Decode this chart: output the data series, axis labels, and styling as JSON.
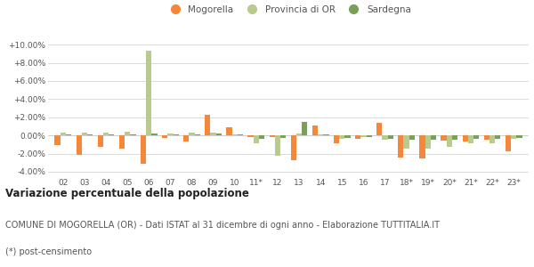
{
  "categories": [
    "02",
    "03",
    "04",
    "05",
    "06",
    "07",
    "08",
    "09",
    "10",
    "11*",
    "12",
    "13",
    "14",
    "15",
    "16",
    "17",
    "18*",
    "19*",
    "20*",
    "21*",
    "22*",
    "23*"
  ],
  "mogorella": [
    -1.1,
    -2.1,
    -1.3,
    -1.5,
    -3.1,
    -0.3,
    -0.7,
    2.3,
    0.9,
    -0.15,
    -0.2,
    -2.7,
    1.1,
    -0.9,
    -0.4,
    1.4,
    -2.4,
    -2.5,
    -0.6,
    -0.7,
    -0.5,
    -1.8
  ],
  "provincia_or": [
    0.3,
    0.3,
    0.35,
    0.4,
    9.3,
    0.2,
    0.3,
    0.3,
    0.1,
    -0.9,
    -2.2,
    0.2,
    0.15,
    -0.4,
    -0.2,
    -0.5,
    -1.5,
    -1.5,
    -1.3,
    -0.9,
    -0.9,
    -0.4
  ],
  "sardegna": [
    0.15,
    0.15,
    0.15,
    0.15,
    0.2,
    0.15,
    0.15,
    0.2,
    0.1,
    -0.4,
    -0.3,
    1.5,
    0.15,
    -0.25,
    -0.2,
    -0.4,
    -0.5,
    -0.5,
    -0.5,
    -0.4,
    -0.4,
    -0.3
  ],
  "color_mogorella": "#f4873a",
  "color_provincia": "#b8ca8e",
  "color_sardegna": "#7a9f5a",
  "ylim_min": -4.5,
  "ylim_max": 10.8,
  "yticks": [
    -4.0,
    -2.0,
    0.0,
    2.0,
    4.0,
    6.0,
    8.0,
    10.0
  ],
  "ytick_labels": [
    "-4.00%",
    "-2.00%",
    "0.00%",
    "+2.00%",
    "+4.00%",
    "+6.00%",
    "+8.00%",
    "+10.00%"
  ],
  "title": "Variazione percentuale della popolazione",
  "subtitle": "COMUNE DI MOGORELLA (OR) - Dati ISTAT al 31 dicembre di ogni anno - Elaborazione TUTTITALIA.IT",
  "footnote": "(*) post-censimento",
  "legend_labels": [
    "Mogorella",
    "Provincia di OR",
    "Sardegna"
  ],
  "bar_width": 0.26,
  "bg_color": "#ffffff",
  "grid_color": "#cccccc",
  "text_color": "#555555",
  "title_fontsize": 8.5,
  "subtitle_fontsize": 7.0,
  "tick_fontsize": 6.5,
  "legend_fontsize": 7.5
}
